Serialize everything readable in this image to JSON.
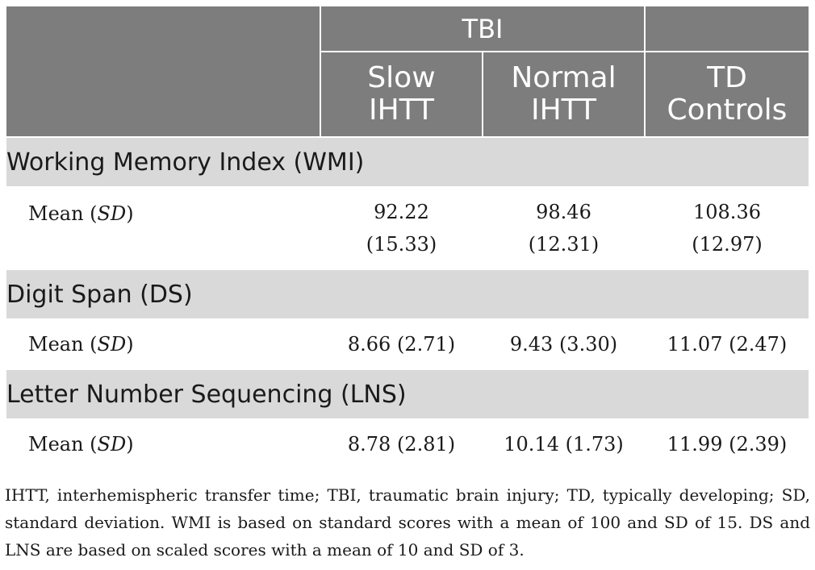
{
  "header": {
    "group_tbi": "TBI",
    "group_blank": "",
    "col1": [
      "Slow",
      "IHTT"
    ],
    "col2": [
      "Normal",
      "IHTT"
    ],
    "col3": [
      "TD",
      "Controls"
    ]
  },
  "sections": [
    {
      "title": "Working Memory Index (WMI)",
      "row_label_prefix": "Mean (",
      "row_label_italic": "SD",
      "row_label_suffix": ")",
      "values": [
        [
          "92.22",
          "(15.33)"
        ],
        [
          "98.46",
          "(12.31)"
        ],
        [
          "108.36",
          "(12.97)"
        ]
      ]
    },
    {
      "title": "Digit Span (DS)",
      "row_label_prefix": "Mean (",
      "row_label_italic": "SD",
      "row_label_suffix": ")",
      "values": [
        "8.66 (2.71)",
        "9.43 (3.30)",
        "11.07 (2.47)"
      ]
    },
    {
      "title": "Letter Number Sequencing (LNS)",
      "row_label_prefix": "Mean (",
      "row_label_italic": "SD",
      "row_label_suffix": ")",
      "values": [
        "8.78 (2.81)",
        "10.14 (1.73)",
        "11.99 (2.39)"
      ]
    }
  ],
  "footnote": "IHTT, interhemispheric transfer time; TBI, traumatic brain injury; TD, typically developing; SD, standard deviation. WMI is based on standard scores with a mean of 100 and SD of 15. DS and LNS are based on scaled scores with a mean of 10 and SD of 3."
}
